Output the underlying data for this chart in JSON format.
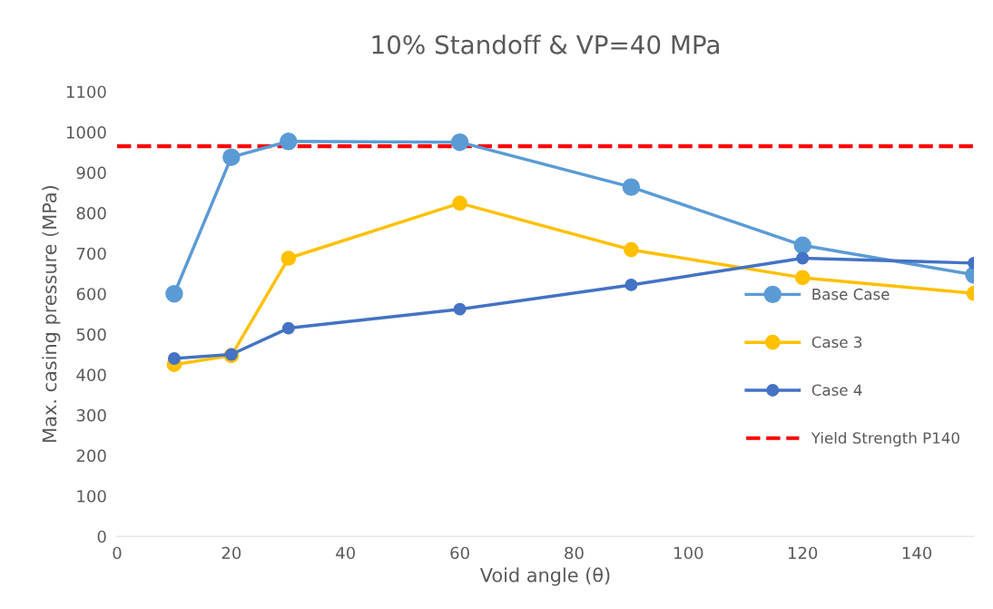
{
  "chart_data": {
    "type": "line",
    "title": "10% Standoff & VP=40 MPa",
    "xlabel": "Void angle (θ)",
    "ylabel": "Max. casing pressure (MPa)",
    "x": [
      10,
      20,
      30,
      60,
      90,
      120,
      150
    ],
    "series": [
      {
        "name": "Base Case",
        "color": "#5b9bd5",
        "values": [
          600,
          938,
          977,
          975,
          864,
          720,
          647
        ]
      },
      {
        "name": "Case 3",
        "color": "#ffc000",
        "values": [
          425,
          447,
          688,
          824,
          709,
          640,
          601
        ]
      },
      {
        "name": "Case 4",
        "color": "#4472c4",
        "values": [
          440,
          450,
          515,
          562,
          622,
          688,
          676
        ]
      }
    ],
    "ref_lines": [
      {
        "axis": "y",
        "value": 965,
        "label": "Yield Strength P140",
        "color": "#ff0000",
        "line_style": "dashed"
      }
    ],
    "xlim": [
      0,
      150
    ],
    "xticks": [
      0,
      20,
      40,
      60,
      80,
      100,
      120,
      140
    ],
    "ylim": [
      0,
      1100
    ],
    "yticks": [
      0,
      100,
      200,
      300,
      400,
      500,
      600,
      700,
      800,
      900,
      1000,
      1100
    ],
    "marker": "circle",
    "line_style": "solid",
    "legend": "right",
    "grid": false
  }
}
